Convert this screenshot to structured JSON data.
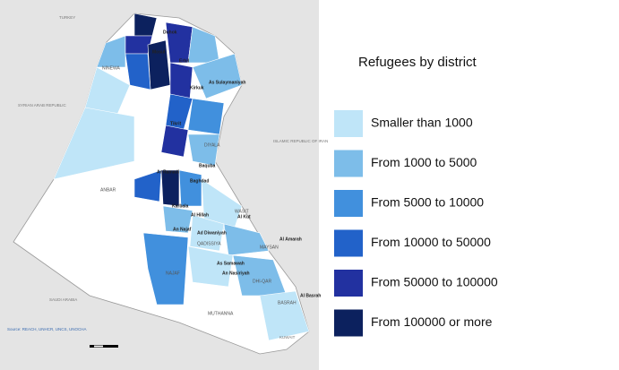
{
  "legend": {
    "title": "Refugees by district",
    "items": [
      {
        "label": "Smaller than 1000",
        "color": "#bfe5f8"
      },
      {
        "label": "From 1000 to 5000",
        "color": "#7dbde9"
      },
      {
        "label": "From 5000 to 10000",
        "color": "#4190dd"
      },
      {
        "label": "From 10000 to 50000",
        "color": "#2262c9"
      },
      {
        "label": "From 50000 to 100000",
        "color": "#2231a0"
      },
      {
        "label": "From 100000 or more",
        "color": "#0c215e"
      }
    ]
  },
  "map": {
    "countries": [
      "TURKEY",
      "SYRIAN ARAB REPUBLIC",
      "ISLAMIC REPUBLIC OF IRAN",
      "SAUDI ARABIA",
      "KUWAIT"
    ],
    "regions": [
      "ANBAR",
      "MUTHANNA",
      "BASRAH",
      "NINEWA",
      "DIYALA",
      "WASIT",
      "MAYSAN",
      "DHI-QAR",
      "NAJAF",
      "QADISSIYA"
    ],
    "cities": [
      "Duhok",
      "Mosul",
      "Erbil",
      "Kirkuk",
      "As Sulaymaniyah",
      "Tikrit",
      "Baquba",
      "Baghdad",
      "Ar Ramadi",
      "Karbala",
      "Al Hillah",
      "Al Kut",
      "An Najaf",
      "Ad Diwaniyah",
      "As Samawah",
      "An Nasiriyah",
      "Al Amarah",
      "Al Basrah"
    ],
    "source": "Source: REACH, UNHCR, UNCS, UNOCHA"
  }
}
